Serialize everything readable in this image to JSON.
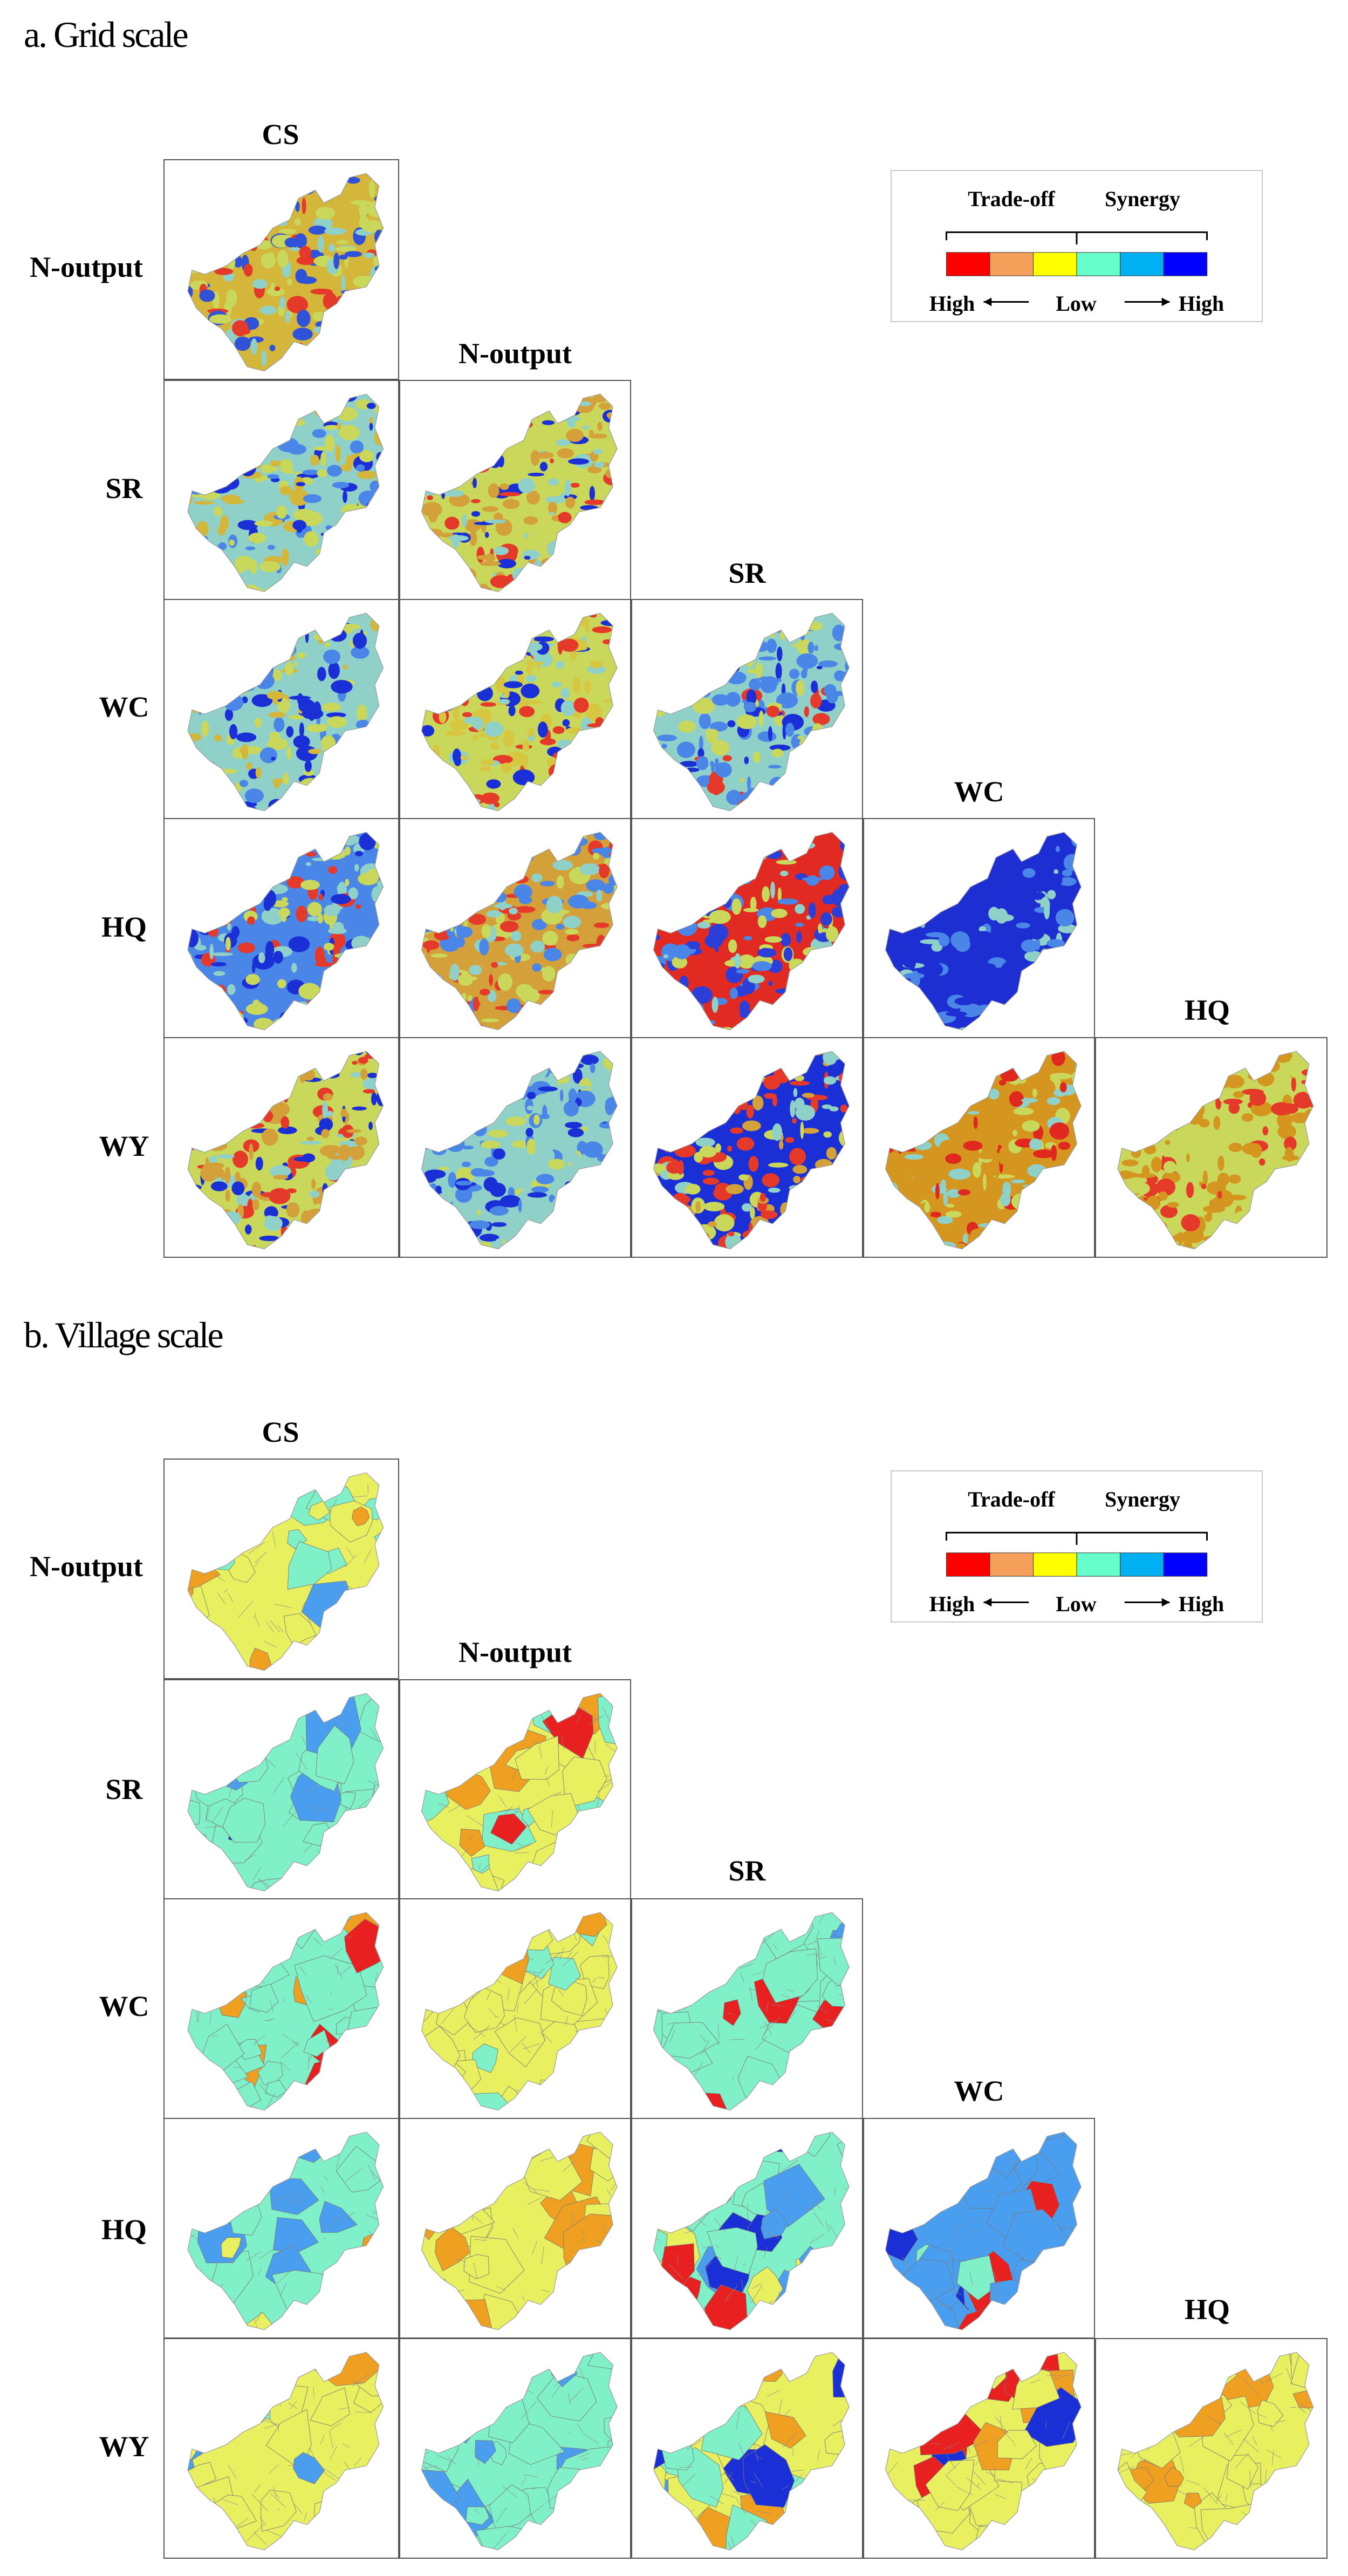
{
  "sections": [
    {
      "title": "a. Grid scale",
      "column_labels": [
        "CS",
        "N-output",
        "SR",
        "WC",
        "HQ"
      ],
      "row_labels": [
        "N-output",
        "SR",
        "WC",
        "HQ",
        "WY"
      ],
      "maps": [
        {
          "row": "N-output",
          "col": "CS",
          "palette": [
            "#d4b73a",
            "#c9d85a",
            "#2f52d8",
            "#e53929",
            "#8fd0c8"
          ]
        },
        {
          "row": "SR",
          "col": "CS",
          "palette": [
            "#8fd0c8",
            "#c9d85a",
            "#4a86e8",
            "#1a2fd6",
            "#d4b73a"
          ]
        },
        {
          "row": "SR",
          "col": "N-output",
          "palette": [
            "#c9d85a",
            "#d4a03a",
            "#8fd0c8",
            "#e53929",
            "#1a2fd6"
          ]
        },
        {
          "row": "WC",
          "col": "CS",
          "palette": [
            "#8fd0c8",
            "#c9d85a",
            "#1a2fd6",
            "#4a86e8",
            "#d4b73a"
          ]
        },
        {
          "row": "WC",
          "col": "N-output",
          "palette": [
            "#c9d85a",
            "#d6c640",
            "#1a2fd6",
            "#8fd0c8",
            "#e53929"
          ]
        },
        {
          "row": "WC",
          "col": "SR",
          "palette": [
            "#8fd0c8",
            "#4a86e8",
            "#c9d85a",
            "#e53929",
            "#1a2fd6"
          ]
        },
        {
          "row": "HQ",
          "col": "CS",
          "palette": [
            "#4a86e8",
            "#8fd0c8",
            "#c9d85a",
            "#1a2fd6",
            "#e53929"
          ]
        },
        {
          "row": "HQ",
          "col": "N-output",
          "palette": [
            "#d4a03a",
            "#c9d85a",
            "#e53929",
            "#8fd0c8",
            "#4a86e8"
          ]
        },
        {
          "row": "HQ",
          "col": "SR",
          "palette": [
            "#e02a22",
            "#2b3fd8",
            "#8fd0c8",
            "#c9d85a",
            "#4a86e8"
          ]
        },
        {
          "row": "HQ",
          "col": "WC",
          "palette": [
            "#1d2fd2",
            "#1d2fd2",
            "#1d2fd2",
            "#4a86e8",
            "#8fd0c8"
          ]
        },
        {
          "row": "WY",
          "col": "CS",
          "palette": [
            "#c9d85a",
            "#d4a03a",
            "#e53929",
            "#1a2fd6",
            "#8fd0c8"
          ]
        },
        {
          "row": "WY",
          "col": "N-output",
          "palette": [
            "#8fd0c8",
            "#4a86e8",
            "#1a2fd6",
            "#c9d85a",
            "#8fd0c8"
          ]
        },
        {
          "row": "WY",
          "col": "SR",
          "palette": [
            "#1a2fd6",
            "#e53929",
            "#c9d85a",
            "#8fd0c8",
            "#d4a03a"
          ]
        },
        {
          "row": "WY",
          "col": "WC",
          "palette": [
            "#d4961e",
            "#d4961e",
            "#e0281e",
            "#8fd0c8",
            "#c9d85a"
          ]
        },
        {
          "row": "WY",
          "col": "HQ",
          "palette": [
            "#c9d85a",
            "#d4961e",
            "#d4961e",
            "#e53929",
            "#c9d85a"
          ]
        }
      ]
    },
    {
      "title": "b. Village scale",
      "column_labels": [
        "CS",
        "N-output",
        "SR",
        "WC",
        "HQ"
      ],
      "row_labels": [
        "N-output",
        "SR",
        "WC",
        "HQ",
        "WY"
      ],
      "maps": [
        {
          "row": "N-output",
          "col": "CS",
          "palette": [
            "#e8f060",
            "#e8f060",
            "#f0a020",
            "#4a9ef0",
            "#7ff0c8"
          ]
        },
        {
          "row": "SR",
          "col": "CS",
          "palette": [
            "#7ff0c8",
            "#7ff0c8",
            "#4a9ef0",
            "#1a2fd6",
            "#7ff0c8"
          ]
        },
        {
          "row": "SR",
          "col": "N-output",
          "palette": [
            "#e8f060",
            "#e8f060",
            "#7ff0c8",
            "#f0a020",
            "#e82020"
          ]
        },
        {
          "row": "WC",
          "col": "CS",
          "palette": [
            "#7ff0c8",
            "#7ff0c8",
            "#7ff0c8",
            "#e82020",
            "#f0a020"
          ]
        },
        {
          "row": "WC",
          "col": "N-output",
          "palette": [
            "#e8f060",
            "#e8f060",
            "#e8f060",
            "#f0a020",
            "#7ff0c8"
          ]
        },
        {
          "row": "WC",
          "col": "SR",
          "palette": [
            "#7ff0c8",
            "#7ff0c8",
            "#7ff0c8",
            "#e82020",
            "#4a9ef0"
          ]
        },
        {
          "row": "HQ",
          "col": "CS",
          "palette": [
            "#7ff0c8",
            "#4a9ef0",
            "#7ff0c8",
            "#e8f060",
            "#f0a020"
          ]
        },
        {
          "row": "HQ",
          "col": "N-output",
          "palette": [
            "#e8f060",
            "#e8f060",
            "#f0a020",
            "#e8f060",
            "#7ff0c8"
          ]
        },
        {
          "row": "HQ",
          "col": "SR",
          "palette": [
            "#7ff0c8",
            "#4a9ef0",
            "#e82020",
            "#e8f060",
            "#1a2fd6"
          ]
        },
        {
          "row": "HQ",
          "col": "WC",
          "palette": [
            "#4a9ef0",
            "#7ff0c8",
            "#4a9ef0",
            "#e82020",
            "#1a2fd6"
          ]
        },
        {
          "row": "WY",
          "col": "CS",
          "palette": [
            "#e8f060",
            "#e8f060",
            "#f0a020",
            "#7ff0c8",
            "#4a9ef0"
          ]
        },
        {
          "row": "WY",
          "col": "N-output",
          "palette": [
            "#7ff0c8",
            "#7ff0c8",
            "#7ff0c8",
            "#4a9ef0",
            "#7ff0c8"
          ]
        },
        {
          "row": "WY",
          "col": "SR",
          "palette": [
            "#e8f060",
            "#f0a020",
            "#1a2fd6",
            "#7ff0c8",
            "#4a9ef0"
          ]
        },
        {
          "row": "WY",
          "col": "WC",
          "palette": [
            "#e8f060",
            "#e8f060",
            "#f0a020",
            "#e82020",
            "#1a2fd6"
          ]
        },
        {
          "row": "WY",
          "col": "HQ",
          "palette": [
            "#e8f060",
            "#e8f060",
            "#f0a020",
            "#e8f060",
            "#f0a020"
          ]
        }
      ]
    }
  ],
  "legend": {
    "tradeoff_label": "Trade-off",
    "synergy_label": "Synergy",
    "high_left": "High",
    "low": "Low",
    "high_right": "High",
    "colors": [
      "#ff0000",
      "#f5a05a",
      "#ffff00",
      "#66ffcc",
      "#00b0f0",
      "#0000ff"
    ]
  }
}
